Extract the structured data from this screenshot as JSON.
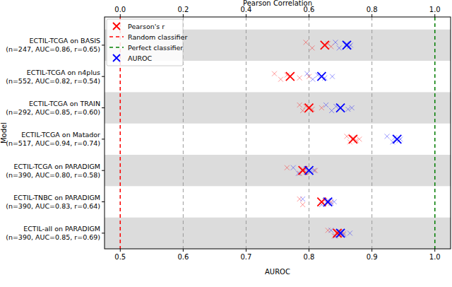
{
  "chart_data": {
    "type": "scatter",
    "x_label": "AUROC",
    "x2_label": "Pearson Correlation",
    "y_label": "Model",
    "categories": [
      "ECTIL-TCGA on BASIS\n(n=247, AUC=0.86, r=0.65)",
      "ECTIL-TCGA on n4plus\n(n=552, AUC=0.82, r=0.54)",
      "ECTIL-TCGA on TRAIN\n(n=292, AUC=0.85, r=0.60)",
      "ECTIL-TCGA on Matador\n(n=517, AUC=0.94, r=0.74)",
      "ECTIL-TCGA on PARADIGM\n(n=390, AUC=0.80, r=0.58)",
      "ECTIL-TNBC on PARADIGM\n(n=390, AUC=0.83, r=0.64)",
      "ECTIL-all on PARADIGM\n(n=390, AUC=0.85, r=0.69)"
    ],
    "series": [
      {
        "name": "Pearson's r",
        "color": "red",
        "marker": "x",
        "axis": "x2",
        "values": [
          0.65,
          0.54,
          0.6,
          0.74,
          0.58,
          0.64,
          0.69
        ],
        "fold_values": [
          [
            0.59,
            0.61,
            0.66,
            0.67,
            0.72
          ],
          [
            0.49,
            0.51,
            0.53,
            0.57,
            0.6
          ],
          [
            0.57,
            0.58,
            0.59,
            0.61,
            0.64
          ],
          [
            0.72,
            0.73,
            0.74,
            0.75,
            0.76
          ],
          [
            0.53,
            0.57,
            0.58,
            0.59,
            0.62
          ],
          [
            0.57,
            0.58,
            0.65,
            0.66,
            0.67
          ],
          [
            0.66,
            0.68,
            0.69,
            0.7,
            0.71
          ]
        ]
      },
      {
        "name": "AUROC",
        "color": "blue",
        "marker": "x",
        "values": [
          0.86,
          0.82,
          0.85,
          0.94,
          0.8,
          0.83,
          0.85
        ],
        "fold_values": [
          [
            0.842,
            0.848,
            0.86,
            0.864,
            0.866
          ],
          [
            0.797,
            0.806,
            0.814,
            0.825,
            0.837
          ],
          [
            0.827,
            0.836,
            0.843,
            0.862,
            0.868
          ],
          [
            0.924,
            0.933,
            0.936,
            0.943,
            0.945
          ],
          [
            0.775,
            0.783,
            0.795,
            0.802,
            0.808
          ],
          [
            0.79,
            0.82,
            0.83,
            0.835,
            0.84
          ],
          [
            0.835,
            0.842,
            0.85,
            0.855,
            0.865
          ]
        ]
      }
    ],
    "reference_lines": [
      {
        "name": "Random classifier",
        "value": 0.5,
        "color": "red",
        "line_style": "dashed"
      },
      {
        "name": "Perfect classifier",
        "value": 1.0,
        "color": "green",
        "line_style": "dashed"
      }
    ],
    "xlim": [
      0.475,
      1.025
    ],
    "xticks": [
      0.5,
      0.6,
      0.7,
      0.8,
      0.9,
      {
        "value": 1,
        "label": "1.0"
      }
    ],
    "x2lim": [
      -0.05,
      1.05
    ],
    "x2ticks": [
      {
        "value": 0,
        "label": "0.0"
      },
      0.2,
      0.4,
      0.6,
      0.8,
      {
        "value": 1,
        "label": "1.0"
      }
    ],
    "grid": true,
    "legend": "upper left"
  }
}
